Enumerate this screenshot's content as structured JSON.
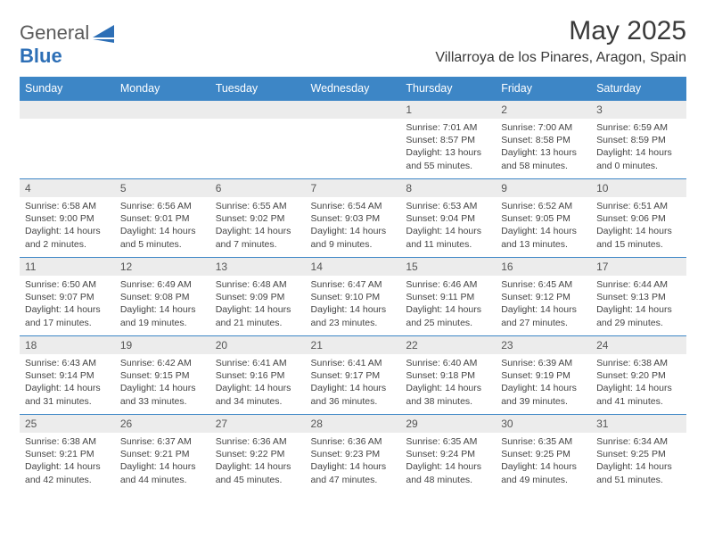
{
  "logo": {
    "word1": "General",
    "word2": "Blue"
  },
  "title": "May 2025",
  "location": "Villarroya de los Pinares, Aragon, Spain",
  "headers": [
    "Sunday",
    "Monday",
    "Tuesday",
    "Wednesday",
    "Thursday",
    "Friday",
    "Saturday"
  ],
  "colors": {
    "header_bg": "#3d86c6",
    "header_fg": "#ffffff",
    "daynum_bg": "#ececec",
    "body_fg": "#444444",
    "border": "#3d86c6"
  },
  "firstDayOffset": 4,
  "days": [
    {
      "n": "1",
      "sunrise": "7:01 AM",
      "sunset": "8:57 PM",
      "daylight": "13 hours and 55 minutes."
    },
    {
      "n": "2",
      "sunrise": "7:00 AM",
      "sunset": "8:58 PM",
      "daylight": "13 hours and 58 minutes."
    },
    {
      "n": "3",
      "sunrise": "6:59 AM",
      "sunset": "8:59 PM",
      "daylight": "14 hours and 0 minutes."
    },
    {
      "n": "4",
      "sunrise": "6:58 AM",
      "sunset": "9:00 PM",
      "daylight": "14 hours and 2 minutes."
    },
    {
      "n": "5",
      "sunrise": "6:56 AM",
      "sunset": "9:01 PM",
      "daylight": "14 hours and 5 minutes."
    },
    {
      "n": "6",
      "sunrise": "6:55 AM",
      "sunset": "9:02 PM",
      "daylight": "14 hours and 7 minutes."
    },
    {
      "n": "7",
      "sunrise": "6:54 AM",
      "sunset": "9:03 PM",
      "daylight": "14 hours and 9 minutes."
    },
    {
      "n": "8",
      "sunrise": "6:53 AM",
      "sunset": "9:04 PM",
      "daylight": "14 hours and 11 minutes."
    },
    {
      "n": "9",
      "sunrise": "6:52 AM",
      "sunset": "9:05 PM",
      "daylight": "14 hours and 13 minutes."
    },
    {
      "n": "10",
      "sunrise": "6:51 AM",
      "sunset": "9:06 PM",
      "daylight": "14 hours and 15 minutes."
    },
    {
      "n": "11",
      "sunrise": "6:50 AM",
      "sunset": "9:07 PM",
      "daylight": "14 hours and 17 minutes."
    },
    {
      "n": "12",
      "sunrise": "6:49 AM",
      "sunset": "9:08 PM",
      "daylight": "14 hours and 19 minutes."
    },
    {
      "n": "13",
      "sunrise": "6:48 AM",
      "sunset": "9:09 PM",
      "daylight": "14 hours and 21 minutes."
    },
    {
      "n": "14",
      "sunrise": "6:47 AM",
      "sunset": "9:10 PM",
      "daylight": "14 hours and 23 minutes."
    },
    {
      "n": "15",
      "sunrise": "6:46 AM",
      "sunset": "9:11 PM",
      "daylight": "14 hours and 25 minutes."
    },
    {
      "n": "16",
      "sunrise": "6:45 AM",
      "sunset": "9:12 PM",
      "daylight": "14 hours and 27 minutes."
    },
    {
      "n": "17",
      "sunrise": "6:44 AM",
      "sunset": "9:13 PM",
      "daylight": "14 hours and 29 minutes."
    },
    {
      "n": "18",
      "sunrise": "6:43 AM",
      "sunset": "9:14 PM",
      "daylight": "14 hours and 31 minutes."
    },
    {
      "n": "19",
      "sunrise": "6:42 AM",
      "sunset": "9:15 PM",
      "daylight": "14 hours and 33 minutes."
    },
    {
      "n": "20",
      "sunrise": "6:41 AM",
      "sunset": "9:16 PM",
      "daylight": "14 hours and 34 minutes."
    },
    {
      "n": "21",
      "sunrise": "6:41 AM",
      "sunset": "9:17 PM",
      "daylight": "14 hours and 36 minutes."
    },
    {
      "n": "22",
      "sunrise": "6:40 AM",
      "sunset": "9:18 PM",
      "daylight": "14 hours and 38 minutes."
    },
    {
      "n": "23",
      "sunrise": "6:39 AM",
      "sunset": "9:19 PM",
      "daylight": "14 hours and 39 minutes."
    },
    {
      "n": "24",
      "sunrise": "6:38 AM",
      "sunset": "9:20 PM",
      "daylight": "14 hours and 41 minutes."
    },
    {
      "n": "25",
      "sunrise": "6:38 AM",
      "sunset": "9:21 PM",
      "daylight": "14 hours and 42 minutes."
    },
    {
      "n": "26",
      "sunrise": "6:37 AM",
      "sunset": "9:21 PM",
      "daylight": "14 hours and 44 minutes."
    },
    {
      "n": "27",
      "sunrise": "6:36 AM",
      "sunset": "9:22 PM",
      "daylight": "14 hours and 45 minutes."
    },
    {
      "n": "28",
      "sunrise": "6:36 AM",
      "sunset": "9:23 PM",
      "daylight": "14 hours and 47 minutes."
    },
    {
      "n": "29",
      "sunrise": "6:35 AM",
      "sunset": "9:24 PM",
      "daylight": "14 hours and 48 minutes."
    },
    {
      "n": "30",
      "sunrise": "6:35 AM",
      "sunset": "9:25 PM",
      "daylight": "14 hours and 49 minutes."
    },
    {
      "n": "31",
      "sunrise": "6:34 AM",
      "sunset": "9:25 PM",
      "daylight": "14 hours and 51 minutes."
    }
  ],
  "labels": {
    "sunrise": "Sunrise:",
    "sunset": "Sunset:",
    "daylight": "Daylight:"
  }
}
